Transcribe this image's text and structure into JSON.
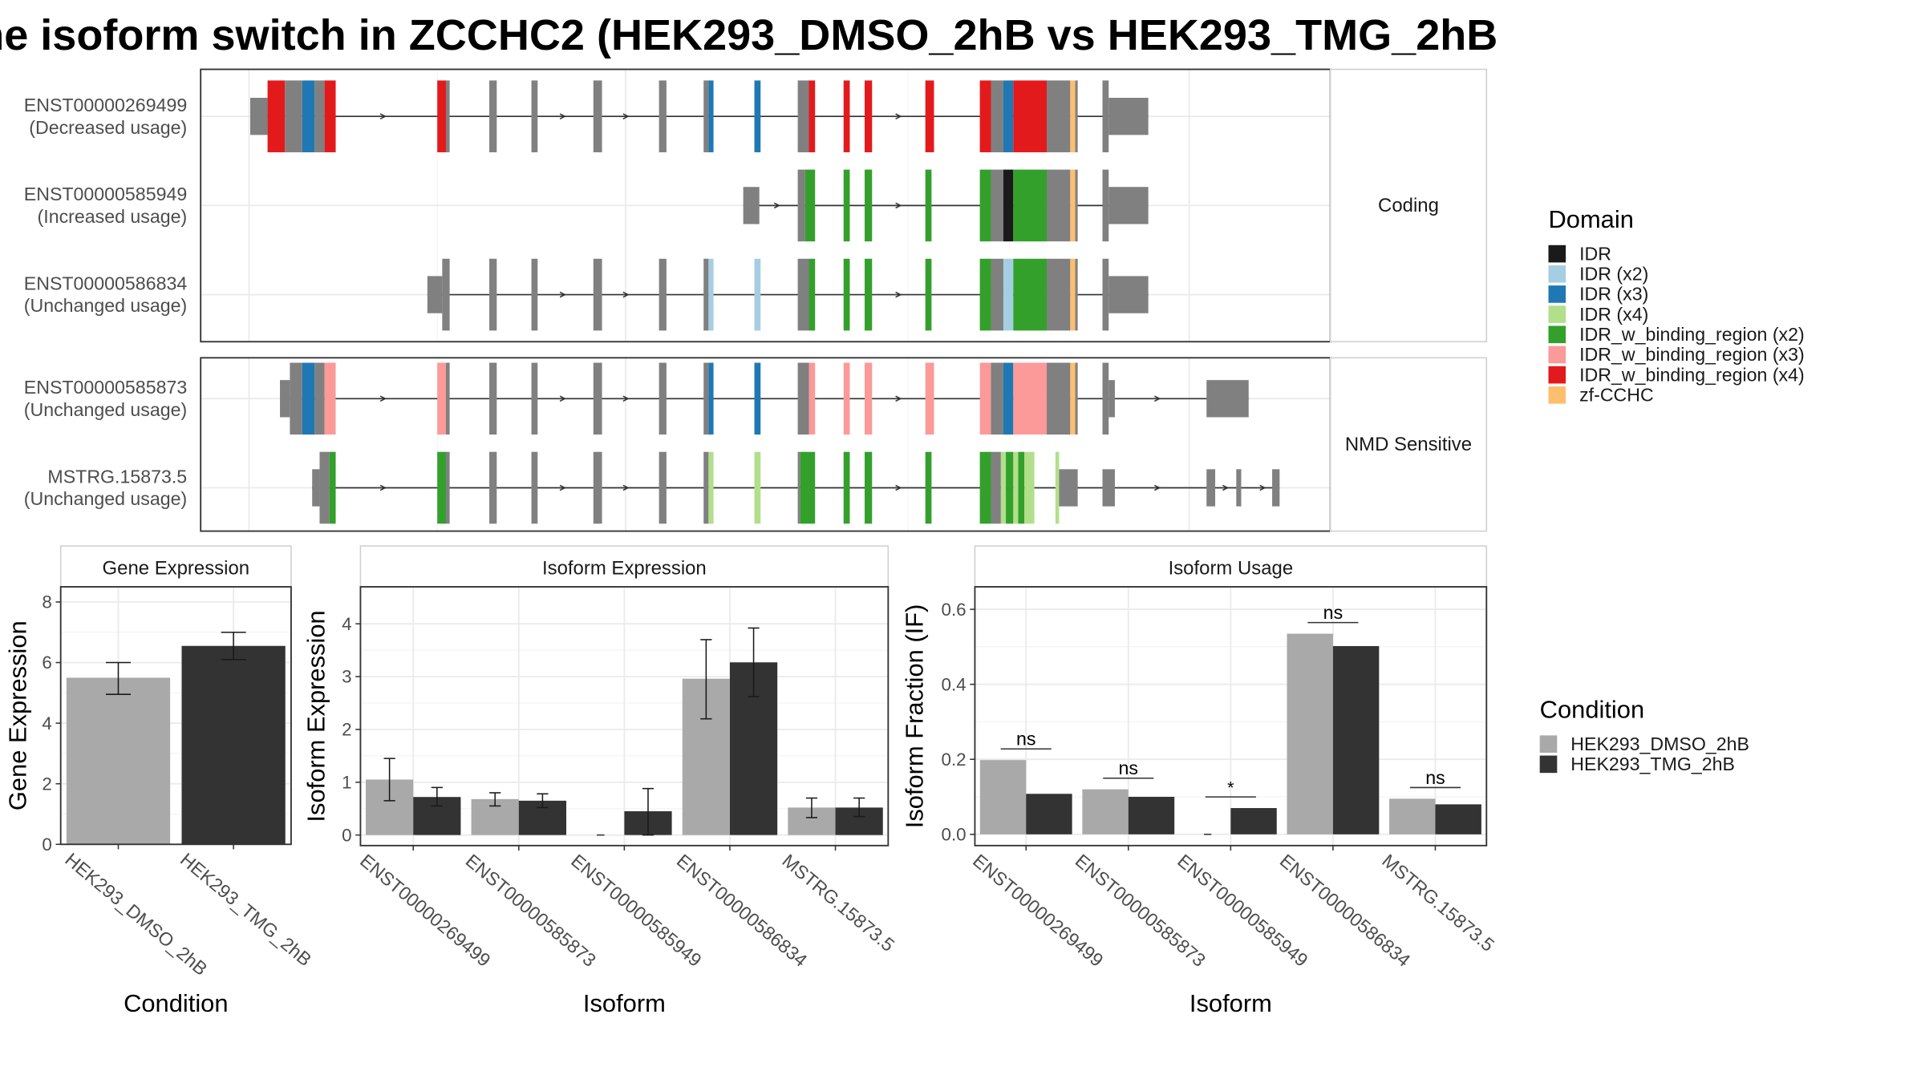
{
  "title": "he isoform switch in ZCCHC2 (HEK293_DMSO_2hB vs HEK293_TMG_2hB",
  "colors": {
    "IDR": "#1a1a1a",
    "IDR (x2)": "#a6cee3",
    "IDR (x3)": "#1f78b4",
    "IDR (x4)": "#b2df8a",
    "IDR_w_binding_region (x2)": "#33a02c",
    "IDR_w_binding_region (x3)": "#fb9a99",
    "IDR_w_binding_region (x4)": "#e31a1c",
    "zf-CCHC": "#fdbf6f",
    "exon": "#808080",
    "dmso": "#a9a9a9",
    "tmg": "#333333"
  },
  "structure": {
    "groups": [
      {
        "label": "Coding",
        "transcripts": [
          {
            "id": "ENST00000269499",
            "usage": "(Decreased usage)"
          },
          {
            "id": "ENST00000585949",
            "usage": "(Increased usage)"
          },
          {
            "id": "ENST00000586834",
            "usage": "(Unchanged usage)"
          }
        ]
      },
      {
        "label": "NMD Sensitive",
        "transcripts": [
          {
            "id": "ENST00000585873",
            "usage": "(Unchanged usage)"
          },
          {
            "id": "MSTRG.15873.5",
            "usage": "(Unchanged usage)"
          }
        ]
      }
    ]
  },
  "legend_domain": {
    "title": "Domain",
    "items": [
      "IDR",
      "IDR (x2)",
      "IDR (x3)",
      "IDR (x4)",
      "IDR_w_binding_region (x2)",
      "IDR_w_binding_region (x3)",
      "IDR_w_binding_region (x4)",
      "zf-CCHC"
    ]
  },
  "legend_condition": {
    "title": "Condition",
    "items": [
      "HEK293_DMSO_2hB",
      "HEK293_TMG_2hB"
    ]
  },
  "chart_data": [
    {
      "type": "bar",
      "title": "Gene Expression",
      "xlabel": "Condition",
      "ylabel": "Gene Expression",
      "categories": [
        "HEK293_DMSO_2hB",
        "HEK293_TMG_2hB"
      ],
      "values": [
        5.5,
        6.55
      ],
      "errors": [
        [
          4.95,
          6.0
        ],
        [
          6.1,
          7.0
        ]
      ],
      "ylim": [
        0,
        8.5
      ],
      "yticks": [
        0,
        2,
        4,
        6,
        8
      ]
    },
    {
      "type": "bar",
      "title": "Isoform Expression",
      "xlabel": "Isoform",
      "ylabel": "Isoform Expression",
      "categories": [
        "ENST00000269499",
        "ENST00000585873",
        "ENST00000585949",
        "ENST00000586834",
        "MSTRG.15873.5"
      ],
      "series": [
        {
          "name": "HEK293_DMSO_2hB",
          "values": [
            1.05,
            0.68,
            0.0,
            2.96,
            0.52
          ],
          "errors": [
            [
              0.65,
              1.45
            ],
            [
              0.55,
              0.8
            ],
            [
              0.0,
              0.0
            ],
            [
              2.2,
              3.7
            ],
            [
              0.33,
              0.7
            ]
          ]
        },
        {
          "name": "HEK293_TMG_2hB",
          "values": [
            0.72,
            0.65,
            0.45,
            3.27,
            0.52
          ],
          "errors": [
            [
              0.55,
              0.9
            ],
            [
              0.52,
              0.78
            ],
            [
              0.0,
              0.88
            ],
            [
              2.62,
              3.92
            ],
            [
              0.35,
              0.7
            ]
          ]
        }
      ],
      "ylim": [
        -0.2,
        4.7
      ],
      "yticks": [
        0,
        1,
        2,
        3,
        4
      ]
    },
    {
      "type": "bar",
      "title": "Isoform Usage",
      "xlabel": "Isoform",
      "ylabel": "Isoform Fraction (IF)",
      "categories": [
        "ENST00000269499",
        "ENST00000585873",
        "ENST00000585949",
        "ENST00000586834",
        "MSTRG.15873.5"
      ],
      "series": [
        {
          "name": "HEK293_DMSO_2hB",
          "values": [
            0.198,
            0.12,
            0.0,
            0.535,
            0.095
          ]
        },
        {
          "name": "HEK293_TMG_2hB",
          "values": [
            0.108,
            0.1,
            0.07,
            0.502,
            0.08
          ]
        }
      ],
      "significance": [
        "ns",
        "ns",
        "*",
        "ns",
        "ns"
      ],
      "ylim": [
        -0.03,
        0.66
      ],
      "yticks": [
        0.0,
        0.2,
        0.4,
        0.6
      ],
      "ytick_labels": [
        "0.0",
        "0.2",
        "0.4",
        "0.6"
      ]
    }
  ]
}
